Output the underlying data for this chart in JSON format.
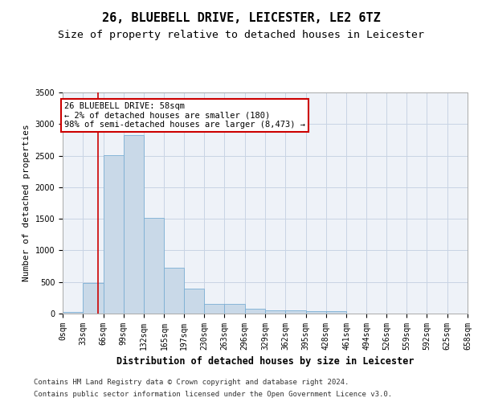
{
  "title": "26, BLUEBELL DRIVE, LEICESTER, LE2 6TZ",
  "subtitle": "Size of property relative to detached houses in Leicester",
  "xlabel": "Distribution of detached houses by size in Leicester",
  "ylabel": "Number of detached properties",
  "bar_color": "#c9d9e8",
  "bar_edge_color": "#7bafd4",
  "grid_color": "#c8d4e4",
  "background_color": "#eef2f8",
  "vline_color": "#cc0000",
  "vline_x": 58,
  "annotation_title": "26 BLUEBELL DRIVE: 58sqm",
  "annotation_line1": "← 2% of detached houses are smaller (180)",
  "annotation_line2": "98% of semi-detached houses are larger (8,473) →",
  "bin_edges": [
    0,
    33,
    66,
    99,
    132,
    165,
    197,
    230,
    263,
    296,
    329,
    362,
    395,
    428,
    461,
    494,
    526,
    559,
    592,
    625,
    658
  ],
  "bar_heights": [
    25,
    480,
    2510,
    2830,
    1510,
    730,
    390,
    155,
    155,
    80,
    55,
    45,
    40,
    40,
    0,
    0,
    0,
    0,
    0,
    0
  ],
  "ylim": [
    0,
    3500
  ],
  "yticks": [
    0,
    500,
    1000,
    1500,
    2000,
    2500,
    3000,
    3500
  ],
  "footer_line1": "Contains HM Land Registry data © Crown copyright and database right 2024.",
  "footer_line2": "Contains public sector information licensed under the Open Government Licence v3.0.",
  "title_fontsize": 11,
  "subtitle_fontsize": 9.5,
  "axis_label_fontsize": 8,
  "tick_fontsize": 7,
  "annotation_fontsize": 7.5,
  "footer_fontsize": 6.5
}
